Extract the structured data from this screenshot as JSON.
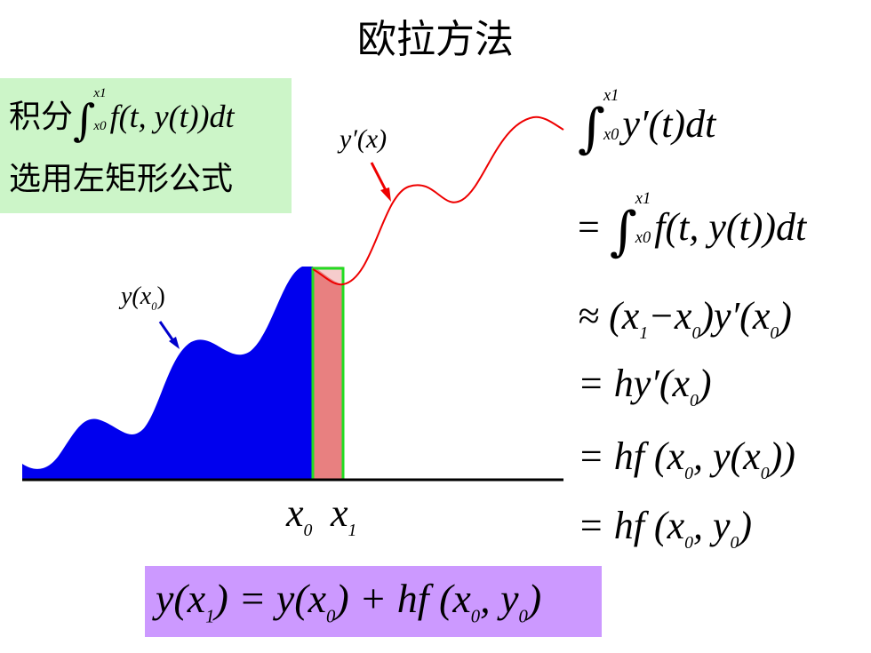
{
  "title": "欧拉方法",
  "green_box": {
    "line1_prefix": "积分",
    "line1_int_upper": "x1",
    "line1_int_lower": "x0",
    "line1_integrand": "f(t, y(t))dt",
    "line2": "选用左矩形公式"
  },
  "graph": {
    "label_yprime": "y′(x)",
    "label_y0": "y(x",
    "label_y0_sub": "0",
    "label_y0_end": ")",
    "x0_label": "x",
    "x0_sub": "0",
    "x1_label": "x",
    "x1_sub": "1",
    "colors": {
      "area": "#0000ee",
      "curve": "#ee0000",
      "rect_fill": "#e88080",
      "rect_border": "#22dd22",
      "arrow_red": "#ee0000",
      "arrow_blue": "#0000cc"
    }
  },
  "derivation": {
    "l1_upper": "x1",
    "l1_lower": "x0",
    "l1_body": "y′(t)dt",
    "l2_prefix": "=",
    "l2_upper": "x1",
    "l2_lower": "x0",
    "l2_body": "f(t, y(t))dt",
    "l3_a": "≈ (x",
    "l3_sub1": "1",
    "l3_b": "−x",
    "l3_sub2": "0",
    "l3_c": ")y′(x",
    "l3_sub3": "0",
    "l3_d": ")",
    "l4_a": "= hy′(x",
    "l4_sub": "0",
    "l4_b": ")",
    "l5_a": "= hf (x",
    "l5_sub1": "0",
    "l5_b": ", y(x",
    "l5_sub2": "0",
    "l5_c": "))",
    "l6_a": "= hf (x",
    "l6_sub1": "0",
    "l6_b": ", y",
    "l6_sub2": "0",
    "l6_c": ")"
  },
  "result": {
    "a": "y(x",
    "sub1": "1",
    "b": ") = y(x",
    "sub2": "0",
    "c": ") + hf (x",
    "sub3": "0",
    "d": ", y",
    "sub4": "0",
    "e": ")"
  }
}
